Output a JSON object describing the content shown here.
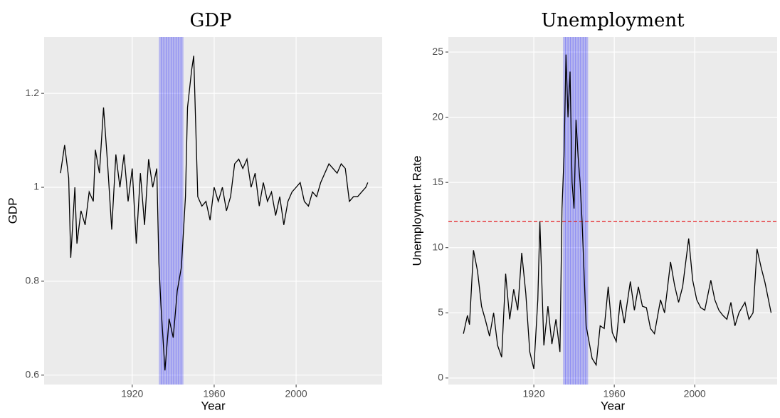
{
  "chart_data": [
    {
      "type": "line",
      "title": "GDP",
      "x_label": "Year",
      "y_label": "GDP",
      "xlim": [
        1877,
        2042
      ],
      "xticks": [
        1920,
        1960,
        2000
      ],
      "ylim": [
        0.58,
        1.32
      ],
      "yticks": [
        0.6,
        0.8,
        1.0,
        1.2
      ],
      "grid": true,
      "shade": [
        1933,
        1945
      ],
      "shade_color": "#0000ff",
      "series": [
        {
          "color": "#000000",
          "x": [
            1885,
            1887,
            1889,
            1890,
            1892,
            1893,
            1895,
            1897,
            1899,
            1901,
            1902,
            1904,
            1906,
            1908,
            1910,
            1912,
            1914,
            1916,
            1918,
            1920,
            1922,
            1924,
            1926,
            1928,
            1930,
            1932,
            1933,
            1934,
            1936,
            1938,
            1940,
            1942,
            1944,
            1946,
            1947,
            1949,
            1950,
            1952,
            1954,
            1956,
            1958,
            1960,
            1962,
            1964,
            1966,
            1968,
            1970,
            1972,
            1974,
            1976,
            1978,
            1980,
            1982,
            1984,
            1986,
            1988,
            1990,
            1992,
            1994,
            1996,
            1998,
            2000,
            2002,
            2004,
            2006,
            2008,
            2010,
            2012,
            2014,
            2016,
            2018,
            2020,
            2022,
            2024,
            2026,
            2028,
            2030,
            2032,
            2034,
            2035
          ],
          "values": [
            1.03,
            1.09,
            1.02,
            0.85,
            1.0,
            0.88,
            0.95,
            0.92,
            0.99,
            0.97,
            1.08,
            1.03,
            1.17,
            1.05,
            0.91,
            1.07,
            1.0,
            1.07,
            0.97,
            1.04,
            0.88,
            1.03,
            0.92,
            1.06,
            1.0,
            1.04,
            0.84,
            0.75,
            0.61,
            0.72,
            0.68,
            0.78,
            0.83,
            0.98,
            1.17,
            1.25,
            1.28,
            0.98,
            0.96,
            0.97,
            0.93,
            1.0,
            0.97,
            1.0,
            0.95,
            0.98,
            1.05,
            1.06,
            1.04,
            1.06,
            1.0,
            1.03,
            0.96,
            1.01,
            0.97,
            0.99,
            0.94,
            0.98,
            0.92,
            0.97,
            0.99,
            1.0,
            1.01,
            0.97,
            0.96,
            0.99,
            0.98,
            1.01,
            1.03,
            1.05,
            1.04,
            1.03,
            1.05,
            1.04,
            0.97,
            0.98,
            0.98,
            0.99,
            1.0,
            1.01
          ]
        }
      ]
    },
    {
      "type": "line",
      "title": "Unemployment",
      "x_label": "Year",
      "y_label": "Unemployment Rate",
      "xlim": [
        1877.5,
        2041
      ],
      "xticks": [
        1920,
        1960,
        2000
      ],
      "ylim": [
        -0.5,
        26.15
      ],
      "yticks": [
        0,
        5,
        10,
        15,
        20,
        25
      ],
      "grid": true,
      "shade": [
        1934.5,
        1947
      ],
      "shade_color": "#0000ff",
      "hline": 12,
      "hline_color": "#e41a1c",
      "series": [
        {
          "color": "#000000",
          "x": [
            1885,
            1887,
            1888,
            1890,
            1892,
            1894,
            1896,
            1898,
            1900,
            1902,
            1904,
            1906,
            1908,
            1910,
            1912,
            1914,
            1916,
            1918,
            1920,
            1922,
            1923,
            1925,
            1927,
            1929,
            1931,
            1933,
            1934,
            1935,
            1936,
            1937,
            1938,
            1939,
            1940,
            1941,
            1942,
            1943,
            1944,
            1946,
            1949,
            1951,
            1953,
            1955,
            1957,
            1959,
            1961,
            1963,
            1965,
            1968,
            1970,
            1972,
            1974,
            1976,
            1978,
            1980,
            1983,
            1985,
            1988,
            1990,
            1992,
            1994,
            1997,
            1999,
            2001,
            2003,
            2005,
            2008,
            2010,
            2012,
            2014,
            2016,
            2018,
            2020,
            2022,
            2025,
            2027,
            2029,
            2031,
            2033,
            2035,
            2038
          ],
          "values": [
            3.4,
            4.8,
            4.1,
            9.8,
            8.2,
            5.5,
            4.4,
            3.2,
            5.0,
            2.5,
            1.6,
            8.0,
            4.5,
            6.8,
            5.2,
            9.6,
            6.5,
            2.0,
            0.7,
            6.0,
            12.0,
            2.5,
            5.5,
            2.6,
            4.5,
            2.0,
            13.0,
            17.0,
            24.8,
            20.0,
            23.5,
            15.0,
            13.0,
            19.8,
            17.0,
            15.0,
            12.0,
            4.0,
            1.5,
            1.0,
            4.0,
            3.8,
            7.0,
            3.5,
            2.8,
            6.0,
            4.2,
            7.4,
            5.2,
            7.0,
            5.5,
            5.4,
            3.8,
            3.4,
            6.0,
            5.0,
            8.9,
            7.1,
            5.8,
            7.0,
            10.7,
            7.5,
            6.0,
            5.4,
            5.2,
            7.5,
            6.0,
            5.2,
            4.8,
            4.5,
            5.8,
            4.0,
            5.0,
            5.8,
            4.5,
            5.0,
            9.9,
            8.5,
            7.3,
            5.0
          ]
        }
      ]
    }
  ]
}
